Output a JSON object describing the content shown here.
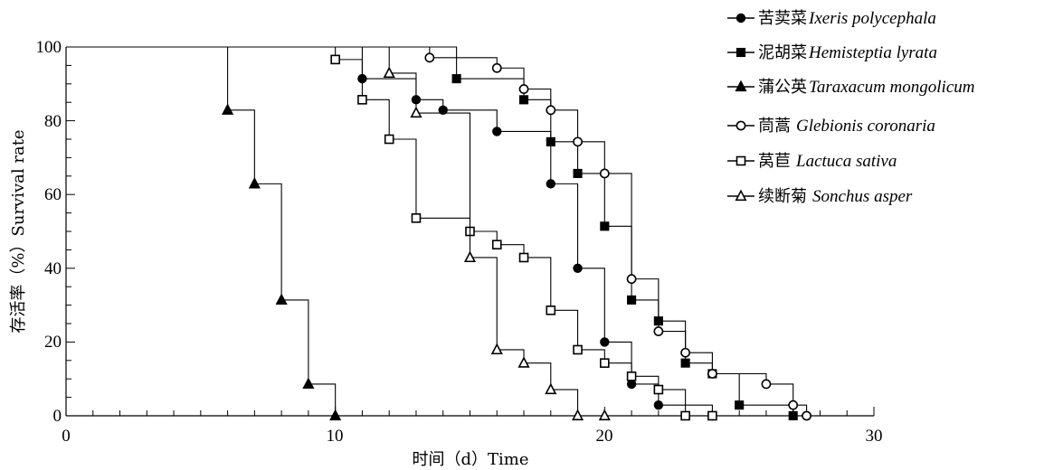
{
  "chart_data": {
    "type": "line",
    "title": "",
    "xlabel": "时间（d）Time",
    "ylabel": "存活率（%）Survival rate",
    "xlim": [
      0,
      30
    ],
    "ylim": [
      0,
      100
    ],
    "xticks": [
      "0",
      "10",
      "20",
      "30"
    ],
    "yticks": [
      "0",
      "20",
      "40",
      "60",
      "80",
      "100"
    ],
    "grid": false,
    "legend_position": "top-right",
    "series": [
      {
        "name_cn": "苦荬菜",
        "name": "Ixeris polycephala",
        "marker": "circle-filled",
        "x": [
          0,
          11,
          13,
          14,
          16,
          18,
          19,
          20,
          21,
          22,
          24
        ],
        "y": [
          100,
          91.4,
          85.7,
          82.9,
          77.1,
          62.9,
          40,
          20,
          8.6,
          2.9,
          0
        ]
      },
      {
        "name_cn": "泥胡菜",
        "name": "Hemisteptia lyrata",
        "marker": "square-filled",
        "x": [
          0,
          14.5,
          17,
          18,
          19,
          20,
          21,
          22,
          23,
          24,
          25,
          27
        ],
        "y": [
          100,
          91.4,
          85.7,
          74.3,
          65.7,
          51.4,
          31.4,
          25.7,
          14.3,
          11.4,
          2.9,
          0
        ]
      },
      {
        "name_cn": "蒲公英",
        "name": "Taraxacum mongolicum",
        "marker": "triangle-filled",
        "x": [
          0,
          6,
          7,
          8,
          9,
          10
        ],
        "y": [
          100,
          82.9,
          62.9,
          31.4,
          8.6,
          0
        ]
      },
      {
        "name_cn": "茼蒿",
        "name": "Glebionis coronaria",
        "marker": "circle-open",
        "x": [
          0,
          13.5,
          16,
          17,
          18,
          19,
          20,
          21,
          22,
          23,
          24,
          26,
          27,
          27.5
        ],
        "y": [
          100,
          97.1,
          94.3,
          88.6,
          82.9,
          74.3,
          65.7,
          37.1,
          22.9,
          17.1,
          11.4,
          8.6,
          2.9,
          0
        ]
      },
      {
        "name_cn": "莴苣",
        "name": "Lactuca sativa",
        "marker": "square-open",
        "x": [
          0,
          10,
          11,
          12,
          13,
          15,
          16,
          17,
          18,
          19,
          20,
          21,
          22,
          23,
          24
        ],
        "y": [
          100,
          96.6,
          85.7,
          75,
          53.6,
          50,
          46.4,
          42.9,
          28.6,
          17.9,
          14.3,
          10.7,
          7.1,
          0,
          0
        ]
      },
      {
        "name_cn": "续断菊",
        "name": "Sonchus asper",
        "marker": "triangle-open",
        "x": [
          0,
          12,
          13,
          15,
          16,
          17,
          18,
          19,
          20
        ],
        "y": [
          100,
          92.9,
          82.1,
          42.9,
          17.9,
          14.3,
          7.1,
          0,
          0
        ]
      }
    ]
  }
}
